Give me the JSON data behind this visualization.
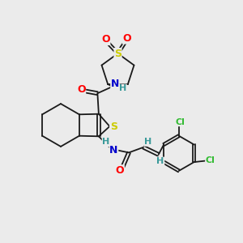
{
  "bg_color": "#ebebeb",
  "bond_color": "#1a1a1a",
  "bond_width": 1.3,
  "S_color": "#cccc00",
  "O_color": "#ff0000",
  "N_color": "#0000cc",
  "Cl_color": "#33bb33",
  "H_color": "#3a9a9a",
  "font_size": 8.0,
  "xlim": [
    0,
    10
  ],
  "ylim": [
    0,
    10
  ]
}
